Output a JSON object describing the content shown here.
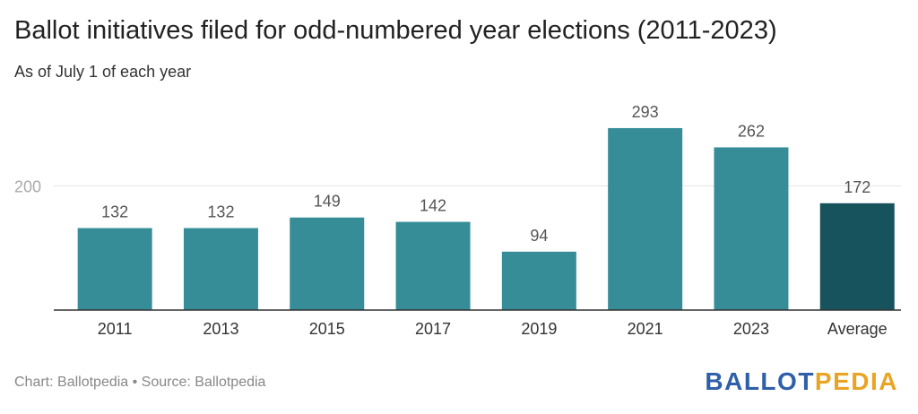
{
  "title": "Ballot initiatives filed for odd-numbered year elections (2011-2023)",
  "subtitle": "As of July 1 of each year",
  "footer": {
    "source": "Chart: Ballotpedia • Source: Ballotpedia"
  },
  "logo": {
    "part1": "BALLOT",
    "part2": "PEDIA"
  },
  "chart_data": {
    "type": "bar",
    "categories": [
      "2011",
      "2013",
      "2015",
      "2017",
      "2019",
      "2021",
      "2023",
      "Average"
    ],
    "values": [
      132,
      132,
      149,
      142,
      94,
      293,
      262,
      172
    ],
    "ylim": [
      0,
      300
    ],
    "y_gridlines": [
      200
    ],
    "grid": true,
    "colors": {
      "bar": "#368d98",
      "highlight": "#17535d",
      "gridline": "#e3e3e3",
      "axis": "#333333",
      "label": "#555555"
    },
    "highlight_category": "Average"
  }
}
